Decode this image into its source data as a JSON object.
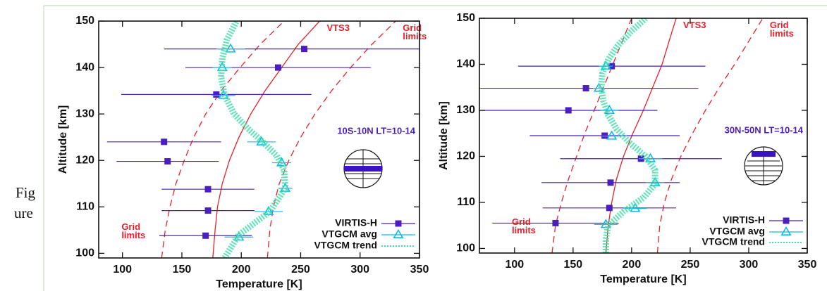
{
  "figure_label": [
    "Fig",
    "ure"
  ],
  "chart_data": [
    {
      "type": "profile",
      "x_label": "Temperature [K]",
      "y_label": "Altitude [km]",
      "region_label": "10S-10N  LT=10-14",
      "xlim": [
        80,
        350
      ],
      "xticks": [
        100,
        150,
        200,
        250,
        300,
        350
      ],
      "ylim": [
        99,
        150
      ],
      "yticks": [
        100,
        110,
        120,
        130,
        140,
        150
      ],
      "series": [
        {
          "name": "VIRTIS-H",
          "color": "#4b1fbf",
          "marker": "square",
          "y": [
            144,
            140,
            134.2,
            124,
            119.8,
            113.8,
            109.2,
            103.8
          ],
          "x": [
            253,
            231,
            179,
            135,
            138,
            172,
            172,
            170
          ],
          "xerr": [
            118,
            78,
            80,
            48,
            43,
            39,
            39,
            39
          ]
        },
        {
          "name": "VTGCM avg",
          "color": "#10b8f0",
          "marker": "triangle",
          "y": [
            144,
            140,
            134,
            124,
            119.5,
            114,
            109,
            103.5
          ],
          "x": [
            191,
            184,
            185,
            217,
            234,
            237,
            223,
            198
          ],
          "xerr": [
            12,
            8,
            10,
            12,
            8,
            6,
            12,
            12
          ]
        },
        {
          "name": "VTGCM trend",
          "color": "#3fe0a8",
          "style": "dotted",
          "y": [
            99,
            104,
            109,
            114,
            118,
            121,
            124,
            127,
            130,
            134,
            138,
            142,
            146,
            150
          ],
          "x": [
            186,
            198,
            224,
            237,
            236,
            230,
            218,
            205,
            194,
            186,
            183,
            184,
            188,
            196
          ]
        }
      ],
      "curves": [
        {
          "name": "VTS3",
          "color": "#e8202a",
          "style": "solid",
          "y": [
            99,
            105,
            110,
            115,
            120,
            125,
            130,
            135,
            140,
            145,
            150
          ],
          "x": [
            176,
            178,
            180,
            184,
            190,
            198,
            208,
            220,
            234,
            248,
            266
          ]
        },
        {
          "name": "Grid limits",
          "color": "#e8202a",
          "style": "dashed",
          "y": [
            99,
            105,
            110,
            115,
            120,
            125,
            130,
            135,
            140,
            145,
            150
          ],
          "x": [
            133,
            136,
            140,
            145,
            152,
            160,
            170,
            183,
            199,
            216,
            236
          ]
        },
        {
          "name": "Grid limits",
          "color": "#e8202a",
          "style": "dashed",
          "y": [
            99,
            105,
            110,
            115,
            120,
            125,
            130,
            135,
            140,
            145,
            150
          ],
          "x": [
            222,
            224,
            227,
            232,
            240,
            250,
            262,
            276,
            292,
            310,
            330
          ]
        }
      ]
    },
    {
      "type": "profile",
      "x_label": "Temperature [K]",
      "y_label": "Altitude [km]",
      "region_label": "30N-50N  LT=10-14",
      "xlim": [
        70,
        350
      ],
      "xticks": [
        100,
        150,
        200,
        250,
        300,
        350
      ],
      "ylim": [
        99,
        150
      ],
      "yticks": [
        100,
        110,
        120,
        130,
        140,
        150
      ],
      "series": [
        {
          "name": "VIRTIS-H",
          "color": "#4b1fbf",
          "marker": "square",
          "y": [
            139.6,
            134.8,
            130,
            124.5,
            119.5,
            114.3,
            108.8,
            105.5
          ],
          "x": [
            183,
            161,
            146,
            177,
            208,
            182,
            181,
            135
          ],
          "xerr": [
            80,
            96,
            76,
            64,
            69,
            59,
            57,
            54
          ]
        },
        {
          "name": "VTGCM avg",
          "color": "#10b8f0",
          "marker": "triangle",
          "y": [
            139.6,
            134.8,
            130,
            124.4,
            119.5,
            114.3,
            108.7,
            105.2
          ],
          "x": [
            178,
            172,
            181,
            183,
            216,
            220,
            203,
            178
          ],
          "xerr": [
            6,
            5,
            8,
            8,
            10,
            8,
            10,
            10
          ]
        },
        {
          "name": "VTGCM trend",
          "color": "#3fe0a8",
          "style": "dotted",
          "y": [
            99,
            102,
            105,
            108,
            111,
            114,
            117,
            120,
            123,
            126,
            129,
            132,
            135,
            138,
            141,
            144,
            147,
            150
          ],
          "x": [
            178,
            178,
            180,
            193,
            210,
            220,
            220,
            212,
            198,
            187,
            180,
            176,
            174,
            175,
            180,
            188,
            199,
            212
          ]
        }
      ],
      "curves": [
        {
          "name": "VTS3",
          "color": "#e8202a",
          "style": "solid",
          "y": [
            99,
            105,
            110,
            115,
            120,
            125,
            130,
            135,
            140,
            145,
            150
          ],
          "x": [
            178,
            180,
            183,
            187,
            193,
            201,
            210,
            218,
            226,
            232,
            238
          ]
        },
        {
          "name": "Grid limits",
          "color": "#e8202a",
          "style": "dashed",
          "y": [
            99,
            105,
            110,
            115,
            120,
            125,
            130,
            135,
            140,
            145,
            150
          ],
          "x": [
            132,
            135,
            140,
            146,
            153,
            160,
            168,
            176,
            184,
            192,
            200
          ]
        },
        {
          "name": "Grid limits",
          "color": "#e8202a",
          "style": "dashed",
          "y": [
            99,
            105,
            110,
            115,
            120,
            125,
            130,
            135,
            140,
            145,
            150
          ],
          "x": [
            222,
            224,
            228,
            234,
            242,
            252,
            263,
            275,
            288,
            300,
            312
          ]
        }
      ]
    }
  ]
}
